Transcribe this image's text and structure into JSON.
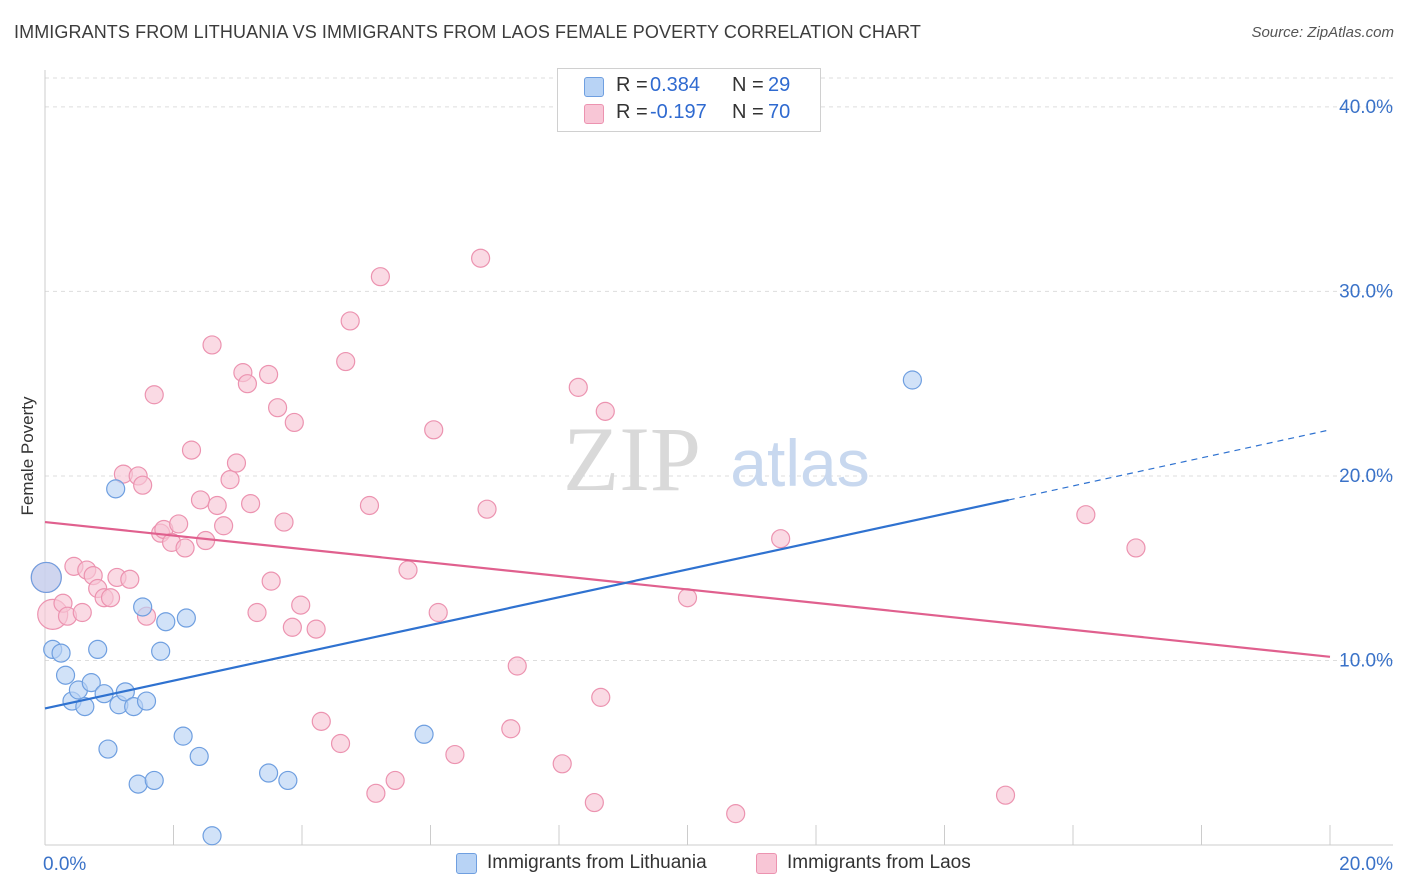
{
  "title": "IMMIGRANTS FROM LITHUANIA VS IMMIGRANTS FROM LAOS FEMALE POVERTY CORRELATION CHART",
  "source": "Source: ZipAtlas.com",
  "watermark": {
    "zip": "ZIP",
    "atlas": "atlas"
  },
  "legend": {
    "rows": [
      {
        "r_label": "R =",
        "r_value": "0.384",
        "n_label": "N =",
        "n_value": "29"
      },
      {
        "r_label": "R =",
        "r_value": "-0.197",
        "n_label": "N =",
        "n_value": "70"
      }
    ]
  },
  "bottom_legend": {
    "items": [
      {
        "label": "Immigrants from Lithuania"
      },
      {
        "label": "Immigrants from Laos"
      }
    ]
  },
  "colors": {
    "lithuania_fill": "#b8d3f5",
    "lithuania_stroke": "#6f9fe0",
    "lithuania_line": "#2f72d0",
    "laos_fill": "#f8c6d6",
    "laos_stroke": "#ec93b0",
    "laos_line": "#e0608e",
    "axis_text": "#3a72c8",
    "grid": "#dddddd"
  },
  "chart_data": {
    "type": "scatter",
    "title": "IMMIGRANTS FROM LITHUANIA VS IMMIGRANTS FROM LAOS FEMALE POVERTY CORRELATION CHART",
    "xlabel": "",
    "ylabel": "Female Poverty",
    "xlim": [
      0,
      20
    ],
    "ylim": [
      0,
      42
    ],
    "x_tick_labels": [
      {
        "value": 0,
        "label": "0.0%"
      },
      {
        "value": 20,
        "label": "20.0%"
      }
    ],
    "y_tick_labels": [
      {
        "value": 10,
        "label": "10.0%"
      },
      {
        "value": 20,
        "label": "20.0%"
      },
      {
        "value": 30,
        "label": "30.0%"
      },
      {
        "value": 40,
        "label": "40.0%"
      }
    ],
    "grid": true,
    "legend_position": "top-center",
    "series": [
      {
        "name": "Immigrants from Lithuania",
        "r": 0.384,
        "n": 29,
        "trend": {
          "x0": 0,
          "y0": 7.4,
          "x1": 15.0,
          "y1": 18.7,
          "dash_to_x": 20,
          "dash_to_y": 22.5
        },
        "points": [
          {
            "x": 0.02,
            "y": 14.5,
            "big": true
          },
          {
            "x": 0.12,
            "y": 10.6
          },
          {
            "x": 0.25,
            "y": 10.4
          },
          {
            "x": 0.32,
            "y": 9.2
          },
          {
            "x": 0.42,
            "y": 7.8
          },
          {
            "x": 0.52,
            "y": 8.4
          },
          {
            "x": 0.62,
            "y": 7.5
          },
          {
            "x": 0.72,
            "y": 8.8
          },
          {
            "x": 0.82,
            "y": 10.6
          },
          {
            "x": 0.92,
            "y": 8.2
          },
          {
            "x": 0.98,
            "y": 5.2
          },
          {
            "x": 1.1,
            "y": 19.3
          },
          {
            "x": 1.15,
            "y": 7.6
          },
          {
            "x": 1.25,
            "y": 8.3
          },
          {
            "x": 1.38,
            "y": 7.5
          },
          {
            "x": 1.45,
            "y": 3.3
          },
          {
            "x": 1.52,
            "y": 12.9
          },
          {
            "x": 1.58,
            "y": 7.8
          },
          {
            "x": 1.7,
            "y": 3.5
          },
          {
            "x": 1.8,
            "y": 10.5
          },
          {
            "x": 1.88,
            "y": 12.1
          },
          {
            "x": 2.15,
            "y": 5.9
          },
          {
            "x": 2.2,
            "y": 12.3
          },
          {
            "x": 2.4,
            "y": 4.8
          },
          {
            "x": 2.6,
            "y": 0.5
          },
          {
            "x": 3.48,
            "y": 3.9
          },
          {
            "x": 3.78,
            "y": 3.5
          },
          {
            "x": 5.9,
            "y": 6.0
          },
          {
            "x": 13.5,
            "y": 25.2
          }
        ]
      },
      {
        "name": "Immigrants from Laos",
        "r": -0.197,
        "n": 70,
        "trend": {
          "x0": 0,
          "y0": 17.5,
          "x1": 20,
          "y1": 10.2
        },
        "points": [
          {
            "x": 0.02,
            "y": 14.5,
            "big": true
          },
          {
            "x": 0.12,
            "y": 12.5,
            "big": true
          },
          {
            "x": 0.28,
            "y": 13.1
          },
          {
            "x": 0.35,
            "y": 12.4
          },
          {
            "x": 0.45,
            "y": 15.1
          },
          {
            "x": 0.58,
            "y": 12.6
          },
          {
            "x": 0.65,
            "y": 14.9
          },
          {
            "x": 0.75,
            "y": 14.6
          },
          {
            "x": 0.82,
            "y": 13.9
          },
          {
            "x": 0.92,
            "y": 13.4
          },
          {
            "x": 1.02,
            "y": 13.4
          },
          {
            "x": 1.12,
            "y": 14.5
          },
          {
            "x": 1.22,
            "y": 20.1
          },
          {
            "x": 1.32,
            "y": 14.4
          },
          {
            "x": 1.45,
            "y": 20.0
          },
          {
            "x": 1.52,
            "y": 19.5
          },
          {
            "x": 1.58,
            "y": 12.4
          },
          {
            "x": 1.7,
            "y": 24.4
          },
          {
            "x": 1.8,
            "y": 16.9
          },
          {
            "x": 1.85,
            "y": 17.1
          },
          {
            "x": 1.97,
            "y": 16.4
          },
          {
            "x": 2.08,
            "y": 17.4
          },
          {
            "x": 2.18,
            "y": 16.1
          },
          {
            "x": 2.28,
            "y": 21.4
          },
          {
            "x": 2.42,
            "y": 18.7
          },
          {
            "x": 2.5,
            "y": 16.5
          },
          {
            "x": 2.6,
            "y": 27.1
          },
          {
            "x": 2.68,
            "y": 18.4
          },
          {
            "x": 2.78,
            "y": 17.3
          },
          {
            "x": 2.88,
            "y": 19.8
          },
          {
            "x": 2.98,
            "y": 20.7
          },
          {
            "x": 3.08,
            "y": 25.6
          },
          {
            "x": 3.15,
            "y": 25.0
          },
          {
            "x": 3.2,
            "y": 18.5
          },
          {
            "x": 3.3,
            "y": 12.6
          },
          {
            "x": 3.48,
            "y": 25.5
          },
          {
            "x": 3.52,
            "y": 14.3
          },
          {
            "x": 3.62,
            "y": 23.7
          },
          {
            "x": 3.72,
            "y": 17.5
          },
          {
            "x": 3.88,
            "y": 22.9
          },
          {
            "x": 3.85,
            "y": 11.8
          },
          {
            "x": 3.98,
            "y": 13.0
          },
          {
            "x": 4.22,
            "y": 11.7
          },
          {
            "x": 4.3,
            "y": 6.7
          },
          {
            "x": 4.6,
            "y": 5.5
          },
          {
            "x": 4.68,
            "y": 26.2
          },
          {
            "x": 4.75,
            "y": 28.4
          },
          {
            "x": 5.05,
            "y": 18.4
          },
          {
            "x": 5.15,
            "y": 2.8
          },
          {
            "x": 5.22,
            "y": 30.8
          },
          {
            "x": 5.45,
            "y": 3.5
          },
          {
            "x": 5.65,
            "y": 14.9
          },
          {
            "x": 6.05,
            "y": 22.5
          },
          {
            "x": 6.12,
            "y": 12.6
          },
          {
            "x": 6.38,
            "y": 4.9
          },
          {
            "x": 6.78,
            "y": 31.8
          },
          {
            "x": 6.88,
            "y": 18.2
          },
          {
            "x": 7.25,
            "y": 6.3
          },
          {
            "x": 7.35,
            "y": 9.7
          },
          {
            "x": 8.05,
            "y": 4.4
          },
          {
            "x": 8.3,
            "y": 24.8
          },
          {
            "x": 8.55,
            "y": 2.3
          },
          {
            "x": 8.65,
            "y": 8.0
          },
          {
            "x": 8.72,
            "y": 23.5
          },
          {
            "x": 10.0,
            "y": 13.4
          },
          {
            "x": 10.75,
            "y": 1.7
          },
          {
            "x": 11.45,
            "y": 16.6
          },
          {
            "x": 14.95,
            "y": 2.7
          },
          {
            "x": 16.2,
            "y": 17.9
          },
          {
            "x": 16.98,
            "y": 16.1
          }
        ]
      }
    ]
  }
}
